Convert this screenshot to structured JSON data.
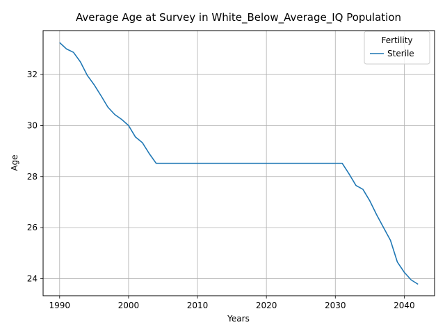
{
  "chart_data": {
    "type": "line",
    "title": "Average Age at Survey in White_Below_Average_IQ Population",
    "xlabel": "Years",
    "ylabel": "Age",
    "xlim": [
      1987.6,
      2044.4
    ],
    "ylim": [
      23.33,
      33.72
    ],
    "xticks": [
      1990,
      2000,
      2010,
      2020,
      2030,
      2040
    ],
    "yticks": [
      24,
      26,
      28,
      30,
      32
    ],
    "xtick_labels": [
      "1990",
      "2000",
      "2010",
      "2020",
      "2030",
      "2040"
    ],
    "ytick_labels": [
      "24",
      "26",
      "28",
      "30",
      "32"
    ],
    "grid": true,
    "legend": {
      "title": "Fertility",
      "position": "top-right"
    },
    "series": [
      {
        "name": "Sterile",
        "color": "#1f77b4",
        "x": [
          1990,
          1991,
          1992,
          1993,
          1994,
          1995,
          1996,
          1997,
          1998,
          1999,
          2000,
          2001,
          2002,
          2003,
          2004,
          2005,
          2010,
          2015,
          2020,
          2025,
          2030,
          2031,
          2032,
          2033,
          2034,
          2035,
          2036,
          2037,
          2038,
          2039,
          2040,
          2041,
          2042
        ],
        "values": [
          33.25,
          33.0,
          32.87,
          32.5,
          31.97,
          31.6,
          31.17,
          30.72,
          30.43,
          30.24,
          30.0,
          29.55,
          29.33,
          28.9,
          28.52,
          28.52,
          28.52,
          28.52,
          28.52,
          28.52,
          28.52,
          28.52,
          28.1,
          27.65,
          27.5,
          27.05,
          26.5,
          26.0,
          25.5,
          24.65,
          24.25,
          23.95,
          23.78
        ]
      }
    ]
  }
}
